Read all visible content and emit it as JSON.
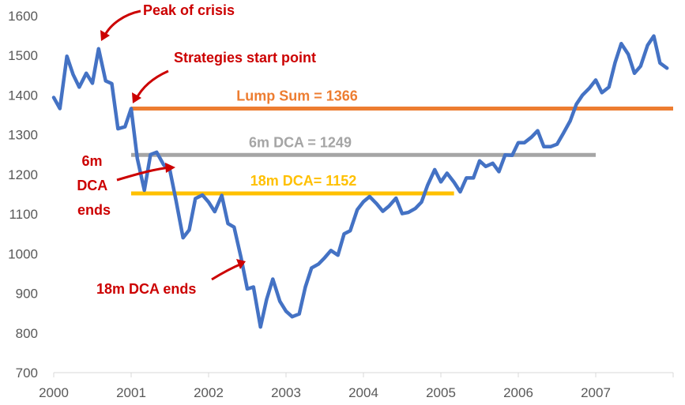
{
  "chart_data": {
    "type": "line",
    "x_range": [
      2000,
      2008
    ],
    "ylim": [
      700,
      1600
    ],
    "y_ticks": [
      700,
      800,
      900,
      1000,
      1100,
      1200,
      1300,
      1400,
      1500,
      1600
    ],
    "x_ticks": [
      2000,
      2001,
      2002,
      2003,
      2004,
      2005,
      2006,
      2007
    ],
    "series": [
      {
        "color": "#4472c4",
        "x": [
          2000.0,
          2000.08,
          2000.17,
          2000.25,
          2000.33,
          2000.42,
          2000.5,
          2000.58,
          2000.67,
          2000.75,
          2000.83,
          2000.92,
          2001.0,
          2001.08,
          2001.17,
          2001.25,
          2001.33,
          2001.42,
          2001.5,
          2001.58,
          2001.67,
          2001.75,
          2001.83,
          2001.92,
          2002.0,
          2002.08,
          2002.17,
          2002.25,
          2002.33,
          2002.42,
          2002.5,
          2002.58,
          2002.67,
          2002.75,
          2002.83,
          2002.92,
          2003.0,
          2003.08,
          2003.17,
          2003.25,
          2003.33,
          2003.42,
          2003.5,
          2003.58,
          2003.67,
          2003.75,
          2003.83,
          2003.92,
          2004.0,
          2004.08,
          2004.17,
          2004.25,
          2004.33,
          2004.42,
          2004.5,
          2004.58,
          2004.67,
          2004.75,
          2004.83,
          2004.92,
          2005.0,
          2005.08,
          2005.17,
          2005.25,
          2005.33,
          2005.42,
          2005.5,
          2005.58,
          2005.67,
          2005.75,
          2005.83,
          2005.92,
          2006.0,
          2006.08,
          2006.17,
          2006.25,
          2006.33,
          2006.42,
          2006.5,
          2006.58,
          2006.67,
          2006.75,
          2006.83,
          2006.92,
          2007.0,
          2007.08,
          2007.17,
          2007.25,
          2007.33,
          2007.42,
          2007.5,
          2007.58,
          2007.67,
          2007.75,
          2007.83,
          2007.92
        ],
        "y": [
          1394,
          1366,
          1498,
          1452,
          1420,
          1455,
          1430,
          1517,
          1436,
          1429,
          1315,
          1320,
          1366,
          1240,
          1160,
          1250,
          1256,
          1224,
          1211,
          1134,
          1040,
          1060,
          1139,
          1148,
          1130,
          1106,
          1147,
          1076,
          1067,
          989,
          911,
          916,
          815,
          885,
          936,
          880,
          855,
          841,
          848,
          916,
          964,
          974,
          990,
          1008,
          996,
          1050,
          1058,
          1111,
          1131,
          1144,
          1126,
          1107,
          1120,
          1140,
          1101,
          1104,
          1114,
          1130,
          1173,
          1212,
          1181,
          1203,
          1180,
          1156,
          1191,
          1191,
          1234,
          1220,
          1228,
          1207,
          1249,
          1248,
          1280,
          1280,
          1294,
          1310,
          1270,
          1270,
          1276,
          1303,
          1335,
          1377,
          1400,
          1418,
          1438,
          1406,
          1420,
          1482,
          1530,
          1503,
          1455,
          1473,
          1526,
          1549,
          1481,
          1468
        ]
      }
    ],
    "reference_lines": [
      {
        "label": "Lump Sum = 1366",
        "value": 1366,
        "x_start": 2001.0,
        "x_end": 2008.0,
        "color": "#ed7d31"
      },
      {
        "label": "6m DCA = 1249",
        "value": 1249,
        "x_start": 2001.0,
        "x_end": 2007.0,
        "color": "#a5a5a5"
      },
      {
        "label": "18m DCA= 1152",
        "value": 1152,
        "x_start": 2001.0,
        "x_end": 2005.17,
        "color": "#ffc000"
      }
    ],
    "annotations": [
      {
        "text": "Peak of crisis"
      },
      {
        "text": "Strategies start point"
      },
      {
        "lines": [
          "6m",
          "DCA",
          "ends"
        ]
      },
      {
        "text": "18m DCA ends"
      }
    ]
  }
}
